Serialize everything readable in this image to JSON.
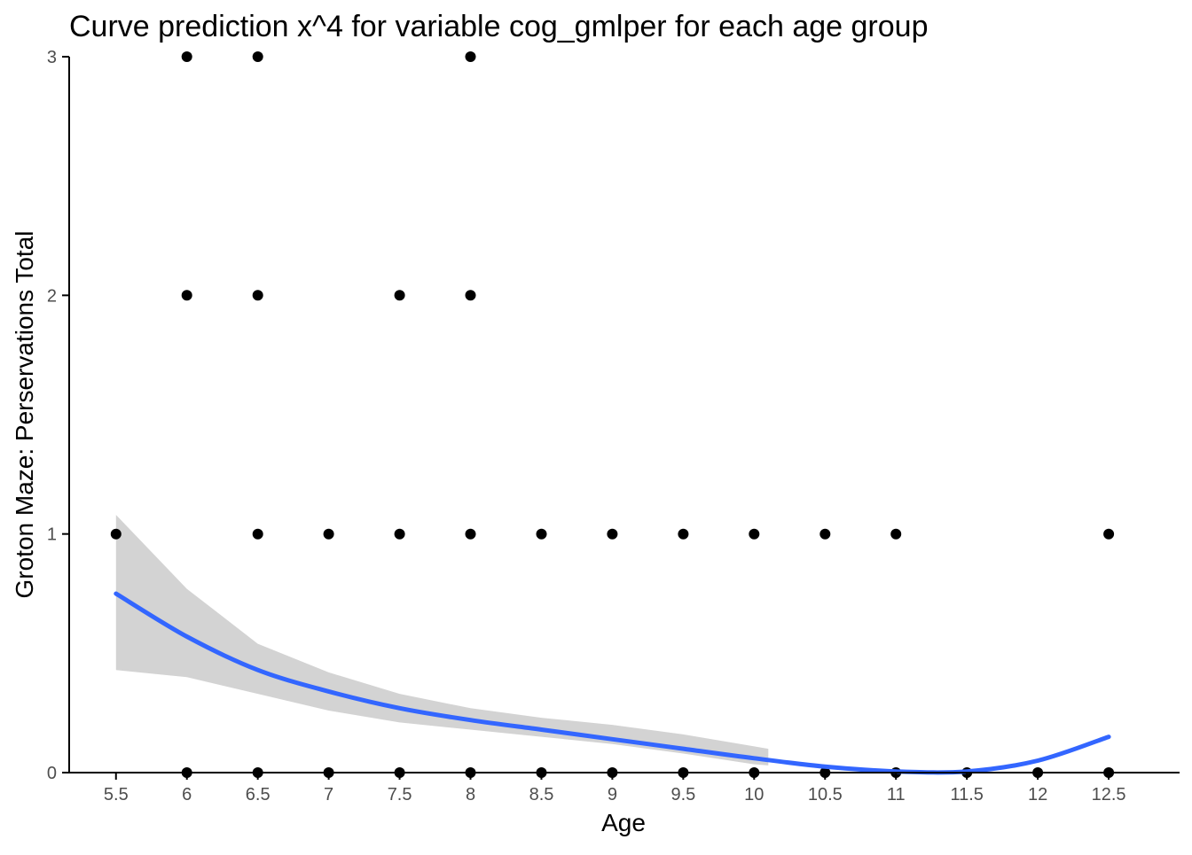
{
  "chart_data": {
    "type": "scatter",
    "title": "Curve prediction x^4  for variable cog_gmlper for each age group",
    "xlabel": "Age",
    "ylabel": "Groton Maze: Perservations Total",
    "x_ticks": [
      "5.5",
      "6",
      "6.5",
      "7",
      "7.5",
      "8",
      "8.5",
      "9",
      "9.5",
      "10",
      "10.5",
      "11",
      "11.5",
      "12",
      "12.5"
    ],
    "y_ticks": [
      "0",
      "1",
      "2",
      "3"
    ],
    "xlim": [
      5.17,
      13.0
    ],
    "ylim": [
      0,
      3
    ],
    "grid": false,
    "legend": "none",
    "colors": {
      "points": "#000000",
      "fit_line": "#3366ff",
      "confidence_band": "#d3d3d3",
      "axis": "#000000",
      "tick_label": "#4d4d4d"
    },
    "series": [
      {
        "kind": "points",
        "x": [
          5.5,
          6,
          6,
          6,
          6.5,
          6.5,
          6.5,
          6.5,
          7,
          7,
          7.5,
          7.5,
          7.5,
          8,
          8,
          8,
          8,
          8.5,
          8.5,
          9,
          9,
          9.5,
          9.5,
          10,
          10,
          10.5,
          10.5,
          11,
          11,
          11.5,
          12,
          12.5,
          12.5
        ],
        "y": [
          1,
          0,
          2,
          3,
          0,
          1,
          2,
          3,
          0,
          1,
          0,
          1,
          2,
          0,
          1,
          2,
          3,
          0,
          1,
          0,
          1,
          0,
          1,
          0,
          1,
          0,
          1,
          0,
          1,
          0,
          0,
          0,
          1
        ]
      },
      {
        "kind": "fit",
        "x": [
          5.5,
          6,
          6.5,
          7,
          7.5,
          8,
          8.5,
          9,
          9.5,
          10,
          10.5,
          11,
          11.5,
          12,
          12.5
        ],
        "y": [
          0.75,
          0.57,
          0.43,
          0.34,
          0.27,
          0.22,
          0.18,
          0.14,
          0.1,
          0.06,
          0.025,
          0.005,
          0.005,
          0.05,
          0.15
        ]
      },
      {
        "kind": "band",
        "x": [
          5.5,
          6,
          6.5,
          7,
          7.5,
          8,
          8.5,
          9,
          9.5,
          10,
          10.1
        ],
        "lower": [
          0.43,
          0.4,
          0.33,
          0.26,
          0.21,
          0.18,
          0.15,
          0.12,
          0.08,
          0.035,
          0.03
        ],
        "upper": [
          1.08,
          0.77,
          0.54,
          0.42,
          0.33,
          0.27,
          0.23,
          0.2,
          0.16,
          0.11,
          0.1
        ]
      }
    ]
  }
}
